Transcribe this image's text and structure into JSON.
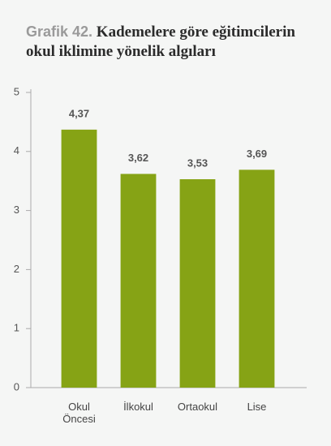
{
  "chart_data": {
    "type": "bar",
    "title_number": "Grafik 42.",
    "title": "Kademelere göre eğitimcilerin okul iklimine yönelik algıları",
    "categories": [
      "Okul Öncesi",
      "İlkokul",
      "Ortaokul",
      "Lise"
    ],
    "values": [
      4.37,
      3.62,
      3.53,
      3.69
    ],
    "value_labels": [
      "4,37",
      "3,62",
      "3,53",
      "3,69"
    ],
    "color": "#86a315",
    "ylim": [
      0,
      5
    ],
    "yticks": [
      0,
      1,
      2,
      3,
      4,
      5
    ],
    "grid": false
  }
}
